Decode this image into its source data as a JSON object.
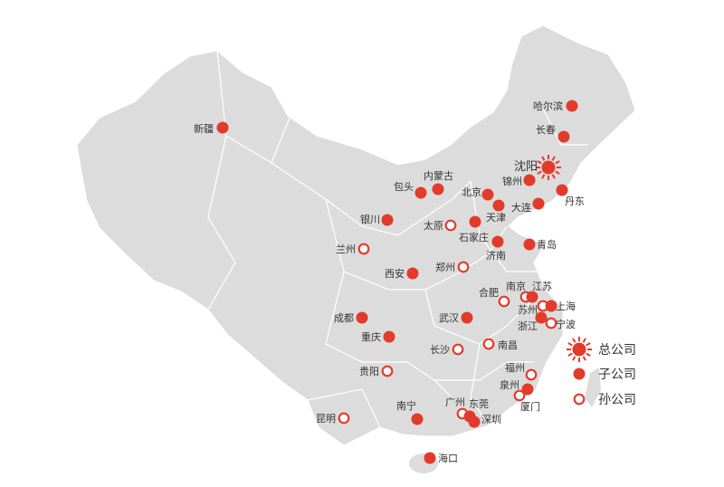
{
  "colors": {
    "accent": "#e23b2b",
    "land": "#dcdcdc",
    "border": "#ffffff",
    "text": "#333333"
  },
  "legend": [
    {
      "type": "hq",
      "label": "总公司",
      "icon": "sun-marker-icon"
    },
    {
      "type": "subsidiary",
      "label": "子公司",
      "icon": "filled-dot-icon"
    },
    {
      "type": "sub-subsidiary",
      "label": "孙公司",
      "icon": "hollow-dot-icon"
    }
  ],
  "cities": [
    {
      "name": "新疆",
      "type": "subsidiary"
    },
    {
      "name": "哈尔滨",
      "type": "subsidiary"
    },
    {
      "name": "长春",
      "type": "subsidiary"
    },
    {
      "name": "沈阳",
      "type": "hq"
    },
    {
      "name": "锦州",
      "type": "subsidiary"
    },
    {
      "name": "丹东",
      "type": "subsidiary"
    },
    {
      "name": "大连",
      "type": "subsidiary"
    },
    {
      "name": "北京",
      "type": "subsidiary"
    },
    {
      "name": "天津",
      "type": "subsidiary"
    },
    {
      "name": "包头",
      "type": "subsidiary"
    },
    {
      "name": "内蒙古",
      "type": "subsidiary"
    },
    {
      "name": "银川",
      "type": "subsidiary"
    },
    {
      "name": "太原",
      "type": "sub-subsidiary"
    },
    {
      "name": "石家庄",
      "type": "subsidiary"
    },
    {
      "name": "济南",
      "type": "subsidiary"
    },
    {
      "name": "青岛",
      "type": "subsidiary"
    },
    {
      "name": "兰州",
      "type": "sub-subsidiary"
    },
    {
      "name": "郑州",
      "type": "sub-subsidiary"
    },
    {
      "name": "西安",
      "type": "subsidiary"
    },
    {
      "name": "合肥",
      "type": "sub-subsidiary"
    },
    {
      "name": "南京",
      "type": "sub-subsidiary"
    },
    {
      "name": "江苏",
      "type": "subsidiary"
    },
    {
      "name": "苏州",
      "type": "sub-subsidiary"
    },
    {
      "name": "上海",
      "type": "subsidiary"
    },
    {
      "name": "浙江",
      "type": "subsidiary"
    },
    {
      "name": "宁波",
      "type": "sub-subsidiary"
    },
    {
      "name": "成都",
      "type": "subsidiary"
    },
    {
      "name": "武汉",
      "type": "subsidiary"
    },
    {
      "name": "重庆",
      "type": "subsidiary"
    },
    {
      "name": "长沙",
      "type": "sub-subsidiary"
    },
    {
      "name": "南昌",
      "type": "sub-subsidiary"
    },
    {
      "name": "贵阳",
      "type": "sub-subsidiary"
    },
    {
      "name": "福州",
      "type": "sub-subsidiary"
    },
    {
      "name": "泉州",
      "type": "subsidiary"
    },
    {
      "name": "厦门",
      "type": "sub-subsidiary"
    },
    {
      "name": "昆明",
      "type": "sub-subsidiary"
    },
    {
      "name": "南宁",
      "type": "subsidiary"
    },
    {
      "name": "广州",
      "type": "sub-subsidiary"
    },
    {
      "name": "东莞",
      "type": "subsidiary"
    },
    {
      "name": "深圳",
      "type": "subsidiary"
    },
    {
      "name": "海口",
      "type": "subsidiary"
    }
  ]
}
